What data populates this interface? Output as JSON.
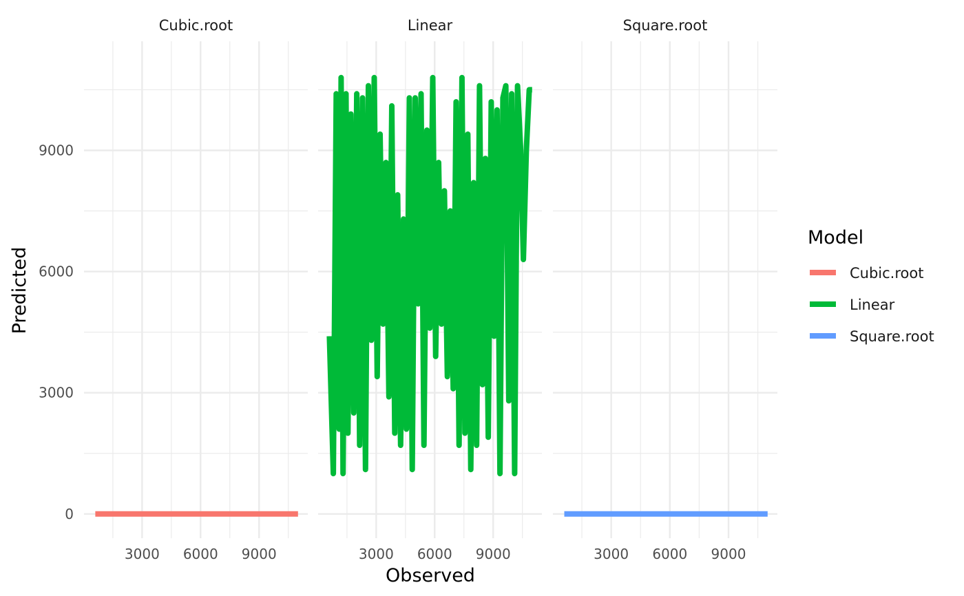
{
  "chart_data": {
    "type": "line",
    "facet_labels": [
      "Cubic.root",
      "Linear",
      "Square.root"
    ],
    "xlabel": "Observed",
    "ylabel": "Predicted",
    "xlim": [
      20,
      11500
    ],
    "ylim": [
      -600,
      11700
    ],
    "x_ticks": [
      3000,
      6000,
      9000
    ],
    "y_ticks": [
      0,
      3000,
      6000,
      9000
    ],
    "grid": true,
    "legend": {
      "title": "Model",
      "position": "right",
      "entries": [
        "Cubic.root",
        "Linear",
        "Square.root"
      ]
    },
    "series": [
      {
        "name": "Cubic.root",
        "color": "#F8766D",
        "panel": 0,
        "x": [
          600,
          11000
        ],
        "values": [
          0,
          0
        ]
      },
      {
        "name": "Linear",
        "color": "#00BA38",
        "panel": 1,
        "x": [
          600,
          800,
          950,
          1100,
          1200,
          1300,
          1450,
          1550,
          1700,
          1850,
          2000,
          2150,
          2300,
          2450,
          2600,
          2750,
          2900,
          3050,
          3200,
          3350,
          3500,
          3650,
          3800,
          3950,
          4100,
          4250,
          4400,
          4550,
          4700,
          4850,
          5000,
          5150,
          5300,
          5450,
          5600,
          5750,
          5900,
          6050,
          6200,
          6350,
          6500,
          6650,
          6800,
          6950,
          7100,
          7250,
          7400,
          7550,
          7700,
          7850,
          8000,
          8150,
          8300,
          8450,
          8600,
          8750,
          8900,
          9050,
          9200,
          9350,
          9500,
          9650,
          9800,
          9950,
          10100,
          10250,
          10400,
          10550,
          10700,
          10850,
          11000
        ],
        "values": [
          4400,
          1000,
          10400,
          2100,
          10800,
          1000,
          10400,
          2000,
          9900,
          2500,
          10400,
          1700,
          10300,
          1100,
          10600,
          4300,
          10800,
          3400,
          9400,
          4700,
          8700,
          2900,
          10100,
          2000,
          7900,
          1700,
          7300,
          2100,
          10300,
          1100,
          10300,
          5200,
          10400,
          1700,
          9500,
          4600,
          10800,
          3900,
          8700,
          4700,
          8000,
          3400,
          7500,
          3100,
          10200,
          1700,
          10800,
          2000,
          9400,
          1100,
          8200,
          1700,
          10600,
          3200,
          8800,
          1900,
          10200,
          4400,
          10000,
          1000,
          10300,
          10600,
          2800,
          10400,
          1000,
          10600,
          9100,
          6300,
          9000,
          10500,
          10500
        ]
      },
      {
        "name": "Square.root",
        "color": "#619CFF",
        "panel": 2,
        "x": [
          600,
          11000
        ],
        "values": [
          0,
          0
        ]
      }
    ]
  }
}
